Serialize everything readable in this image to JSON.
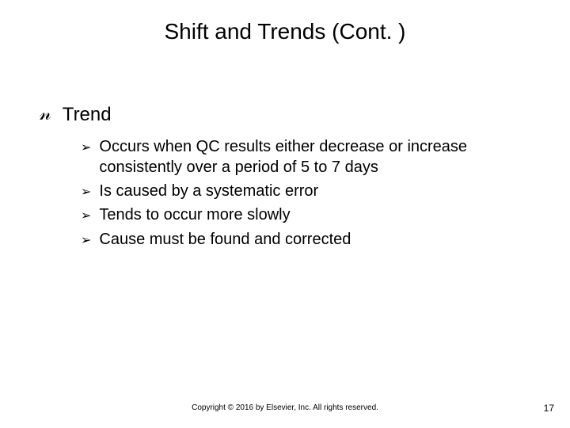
{
  "slide": {
    "title": "Shift and Trends (Cont. )",
    "heading": "Trend",
    "bullets": [
      "Occurs when QC results either decrease or increase consistently over a period of 5 to 7 days",
      "Is caused by a systematic error",
      "Tends to occur more slowly",
      "Cause must be found and corrected"
    ],
    "copyright": "Copyright © 2016 by Elsevier, Inc. All rights reserved.",
    "page_number": "17"
  },
  "style": {
    "background_color": "#ffffff",
    "text_color": "#000000",
    "title_fontsize": 28,
    "level1_fontsize": 24,
    "level2_fontsize": 20,
    "footer_fontsize": 10,
    "pagenum_fontsize": 12,
    "level1_bullet_glyph": "་",
    "level2_bullet_glyph": "➢"
  }
}
